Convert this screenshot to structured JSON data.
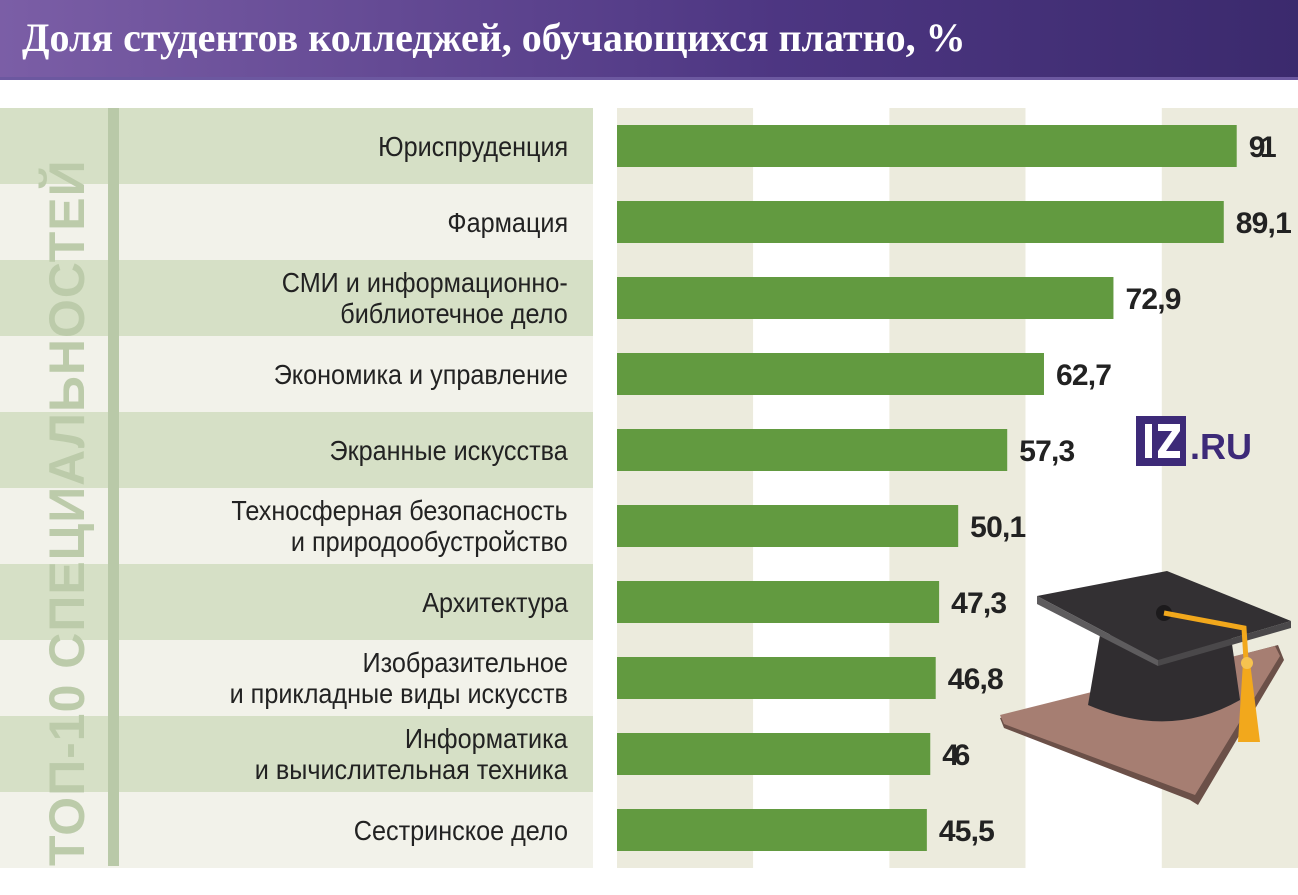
{
  "title": "Доля студентов колледжей, обучающихся платно, %",
  "side_label": "ТОП-10 СПЕЦИАЛЬНОСТЕЙ",
  "logo": "IZ.RU",
  "colors": {
    "bar": "#629a40",
    "stripe": "#ecebdd",
    "title_bg": "#4d3682",
    "logo": "#3d2a78"
  },
  "chart_data": {
    "type": "bar",
    "orientation": "horizontal",
    "title": "Доля студентов колледжей, обучающихся платно, %",
    "categories": [
      "Юриспруденция",
      "Фармация",
      "СМИ и информационно-\nбиблиотечное дело",
      "Экономика и управление",
      "Экранные искусства",
      "Техносферная безопасность\nи природообустройство",
      "Архитектура",
      "Изобразительное\nи прикладные виды искусств",
      "Информатика\nи вычислительная техника",
      "Сестринское дело"
    ],
    "values": [
      91,
      89.1,
      72.9,
      62.7,
      57.3,
      50.1,
      47.3,
      46.8,
      46,
      45.5
    ],
    "value_labels": [
      "91",
      "89,1",
      "72,9",
      "62,7",
      "57,3",
      "50,1",
      "47,3",
      "46,8",
      "46",
      "45,5"
    ],
    "xlim": [
      0,
      100
    ],
    "grid": "alternating vertical bands every 20"
  }
}
